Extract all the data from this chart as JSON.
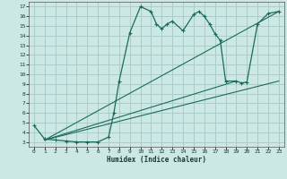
{
  "xlabel": "Humidex (Indice chaleur)",
  "bg_color": "#cce8e4",
  "grid_color": "#aaccca",
  "line_color": "#1a6b5a",
  "xlim": [
    -0.5,
    23.5
  ],
  "ylim": [
    2.5,
    17.5
  ],
  "xticks": [
    0,
    1,
    2,
    3,
    4,
    5,
    6,
    7,
    8,
    9,
    10,
    11,
    12,
    13,
    14,
    15,
    16,
    17,
    18,
    19,
    20,
    21,
    22,
    23
  ],
  "yticks": [
    3,
    4,
    5,
    6,
    7,
    8,
    9,
    10,
    11,
    12,
    13,
    14,
    15,
    16,
    17
  ],
  "curve1_x": [
    0,
    1,
    2,
    3,
    4,
    5,
    6,
    7,
    7.5,
    8,
    9,
    10,
    11,
    11.5,
    12,
    12.5,
    13,
    14,
    15,
    15.5,
    16,
    16.5,
    17,
    17.5,
    18,
    19,
    19.5,
    20,
    21,
    22,
    23
  ],
  "curve1_y": [
    4.7,
    3.3,
    3.2,
    3.1,
    3.0,
    3.0,
    3.0,
    3.5,
    6.0,
    9.3,
    14.3,
    17.0,
    16.5,
    15.2,
    14.7,
    15.2,
    15.5,
    14.5,
    16.2,
    16.5,
    16.0,
    15.2,
    14.2,
    13.5,
    9.3,
    9.3,
    9.1,
    9.2,
    15.2,
    16.3,
    16.5
  ],
  "curve2_x": [
    1,
    23
  ],
  "curve2_y": [
    3.2,
    16.5
  ],
  "curve3_x": [
    1,
    19
  ],
  "curve3_y": [
    3.2,
    9.3
  ],
  "curve4_x": [
    1,
    23
  ],
  "curve4_y": [
    3.2,
    9.3
  ],
  "marker": "+"
}
